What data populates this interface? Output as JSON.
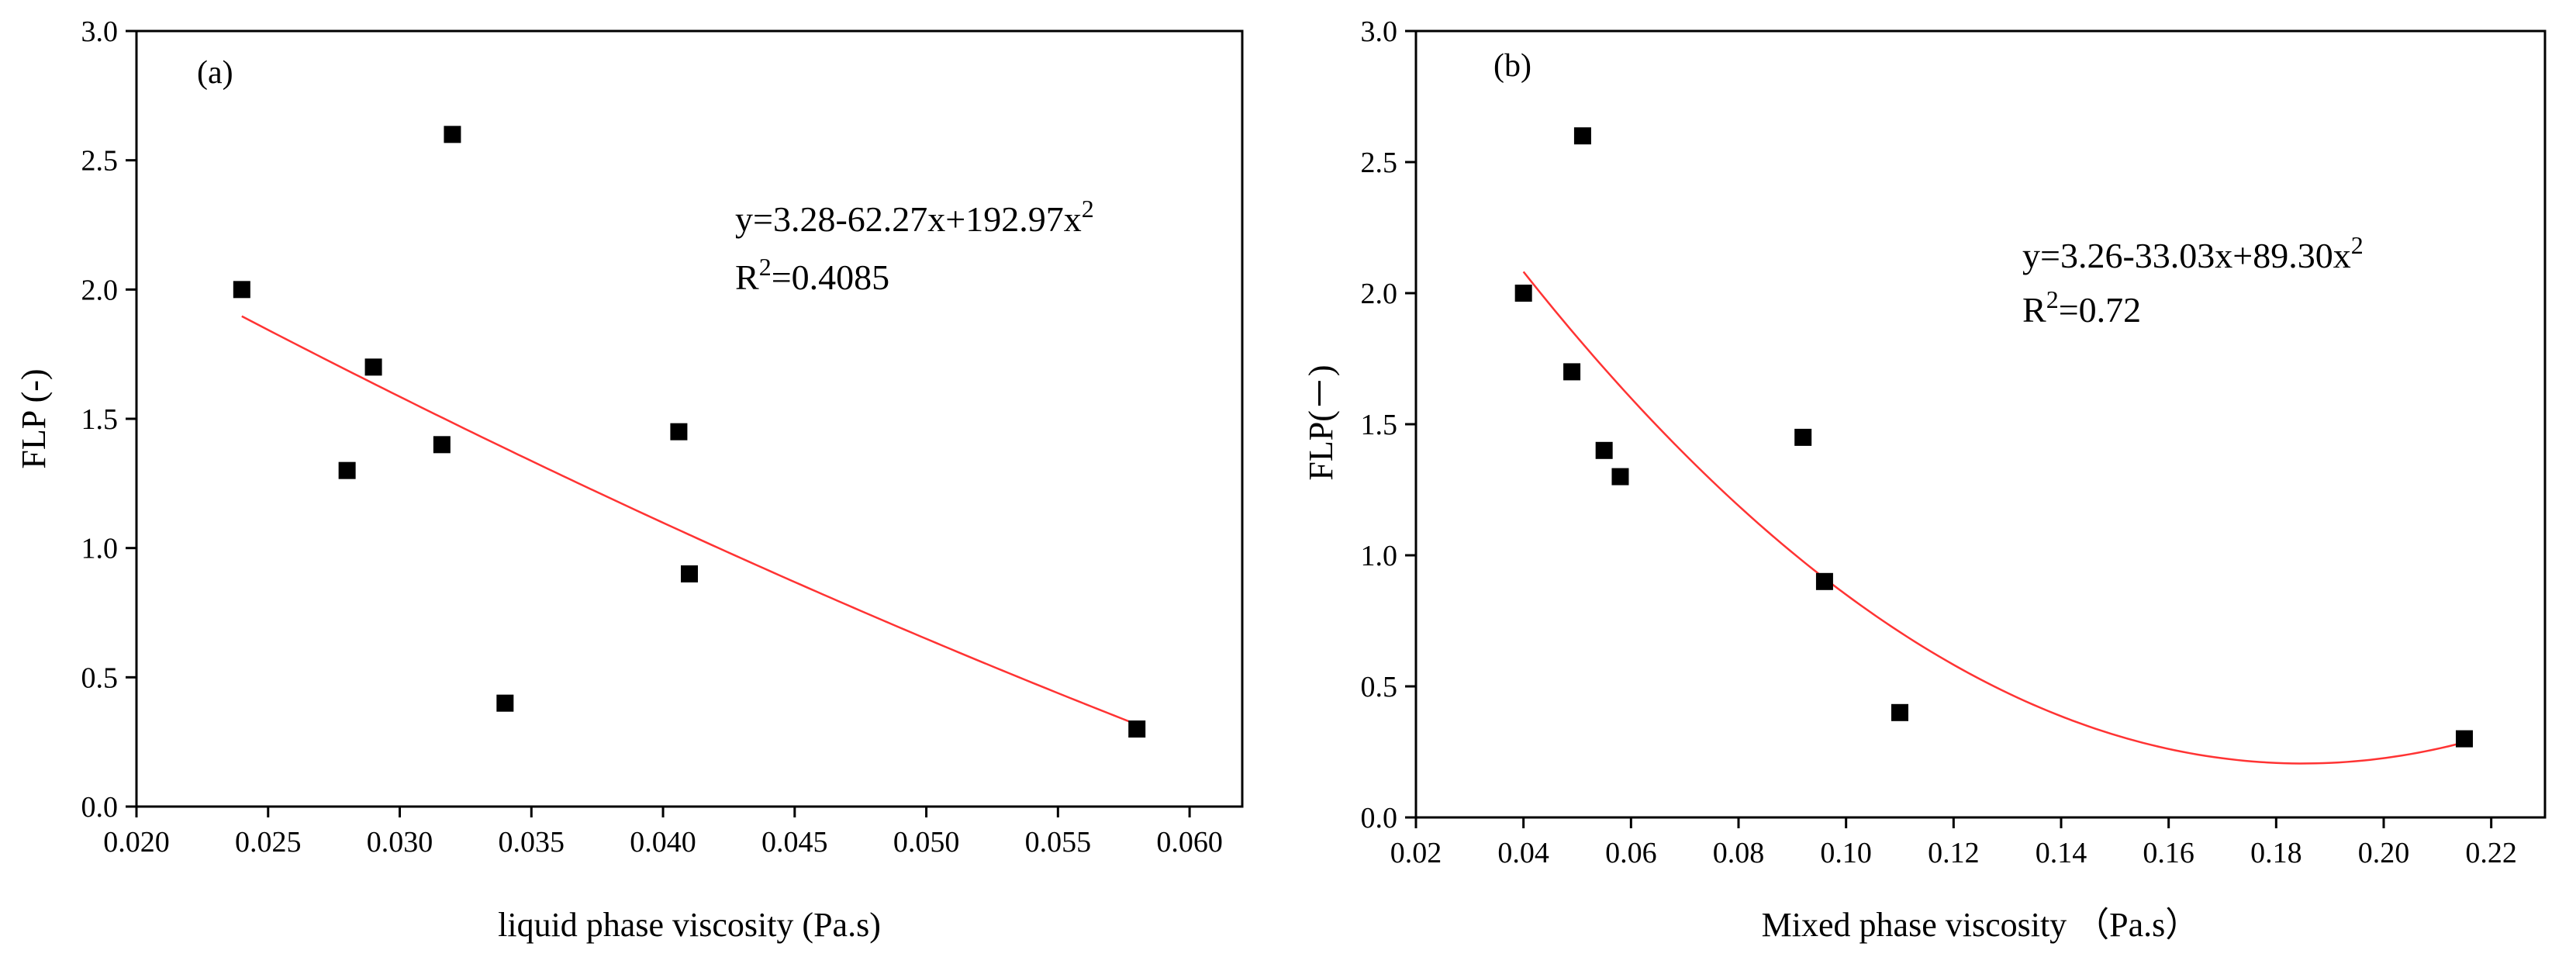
{
  "chart_data": [
    {
      "type": "scatter",
      "panel": "(a)",
      "xlabel": "liquid phase viscosity (Pa.s)",
      "ylabel": "FLP (-)",
      "xlim": [
        0.02,
        0.062
      ],
      "ylim": [
        0,
        3.0
      ],
      "xticks": [
        0.02,
        0.025,
        0.03,
        0.035,
        0.04,
        0.045,
        0.05,
        0.055,
        0.06
      ],
      "xtick_labels": [
        "0.020",
        "0.025",
        "0.030",
        "0.035",
        "0.040",
        "0.045",
        "0.050",
        "0.055",
        "0.060"
      ],
      "yticks": [
        0.0,
        0.5,
        1.0,
        1.5,
        2.0,
        2.5,
        3.0
      ],
      "ytick_labels": [
        "0.0",
        "0.5",
        "1.0",
        "1.5",
        "2.0",
        "2.5",
        "3.0"
      ],
      "points": [
        {
          "x": 0.024,
          "y": 2.0
        },
        {
          "x": 0.028,
          "y": 1.3
        },
        {
          "x": 0.029,
          "y": 1.7
        },
        {
          "x": 0.0316,
          "y": 1.4
        },
        {
          "x": 0.032,
          "y": 2.6
        },
        {
          "x": 0.034,
          "y": 0.4
        },
        {
          "x": 0.0406,
          "y": 1.45
        },
        {
          "x": 0.041,
          "y": 0.9
        },
        {
          "x": 0.058,
          "y": 0.3
        }
      ],
      "fit": {
        "a": 3.28,
        "b": -62.27,
        "c": 192.97,
        "xrange": [
          0.024,
          0.058
        ]
      },
      "equation": {
        "prefix": "y=3.28-62.27x+192.97x",
        "power": "2",
        "r2_prefix": "R",
        "r2_power": "2",
        "r2_value": "=0.4085"
      }
    },
    {
      "type": "scatter",
      "panel": "(b)",
      "xlabel": "Mixed phase viscosity （Pa.s）",
      "ylabel": "FLP(－)",
      "xlim": [
        0.02,
        0.23
      ],
      "ylim": [
        0,
        3.0
      ],
      "xticks": [
        0.02,
        0.04,
        0.06,
        0.08,
        0.1,
        0.12,
        0.14,
        0.16,
        0.18,
        0.2,
        0.22
      ],
      "xtick_labels": [
        "0.02",
        "0.04",
        "0.06",
        "0.08",
        "0.10",
        "0.12",
        "0.14",
        "0.16",
        "0.18",
        "0.20",
        "0.22"
      ],
      "yticks": [
        0.0,
        0.5,
        1.0,
        1.5,
        2.0,
        2.5,
        3.0
      ],
      "ytick_labels": [
        "0.0",
        "0.5",
        "1.0",
        "1.5",
        "2.0",
        "2.5",
        "3.0"
      ],
      "points": [
        {
          "x": 0.04,
          "y": 2.0
        },
        {
          "x": 0.049,
          "y": 1.7
        },
        {
          "x": 0.051,
          "y": 2.6
        },
        {
          "x": 0.055,
          "y": 1.4
        },
        {
          "x": 0.058,
          "y": 1.3
        },
        {
          "x": 0.092,
          "y": 1.45
        },
        {
          "x": 0.096,
          "y": 0.9
        },
        {
          "x": 0.11,
          "y": 0.4
        },
        {
          "x": 0.215,
          "y": 0.3
        }
      ],
      "fit": {
        "a": 3.26,
        "b": -33.03,
        "c": 89.3,
        "xrange": [
          0.04,
          0.215
        ]
      },
      "equation": {
        "prefix": "y=3.26-33.03x+89.30x",
        "power": "2",
        "r2_prefix": "R",
        "r2_power": "2",
        "r2_value": "=0.72"
      }
    }
  ]
}
